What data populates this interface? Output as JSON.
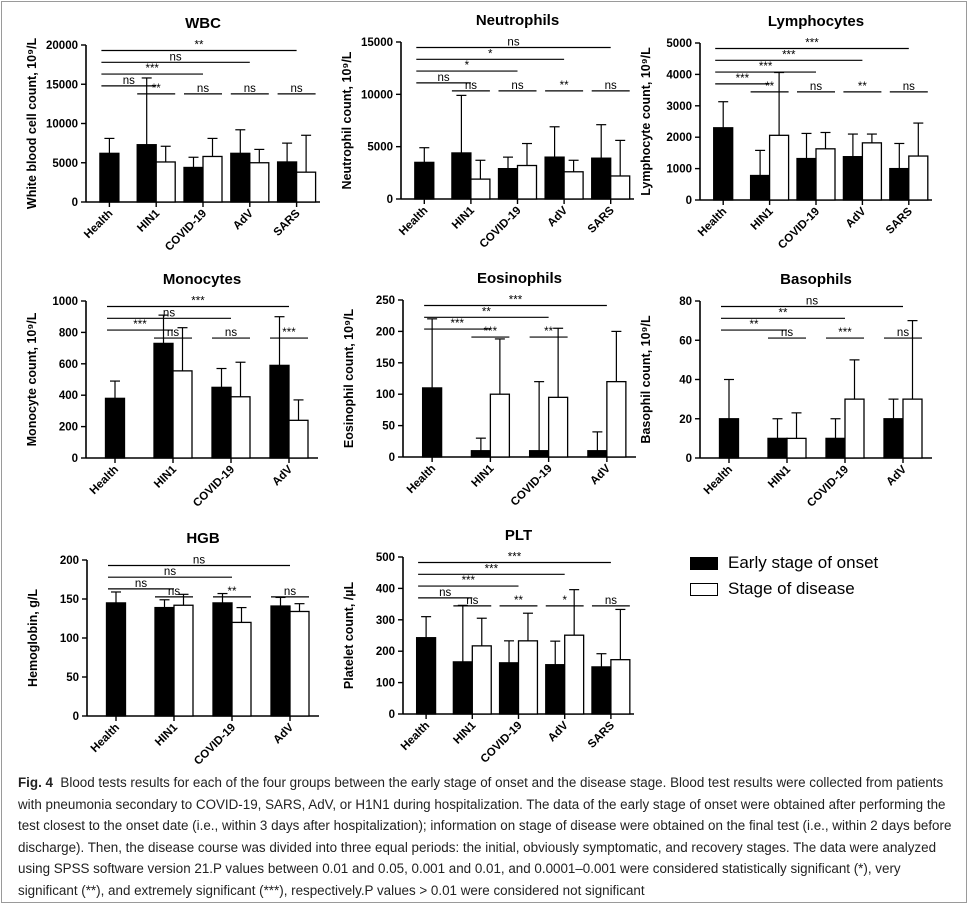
{
  "caption": {
    "label": "Fig. 4",
    "text": "Blood tests results for each of the four groups between the early stage of onset and the disease stage. Blood test results were collected from patients with pneumonia secondary to COVID-19, SARS, AdV, or H1N1 during hospitalization. The data of the early stage of onset were obtained after performing the test closest to the onset date (i.e., within 3 days after hospitalization); information on stage of disease were obtained on the final test (i.e., within 2 days before discharge). Then, the disease course was divided into three equal periods: the initial, obviously symptomatic, and recovery stages. The data were analyzed using SPSS software version 21.P values between 0.01 and 0.05, 0.001 and 0.01, and 0.0001–0.001 were considered statistically significant (*), very significant (**), and extremely significant (***), respectively.P values > 0.01 were considered not significant"
  },
  "legend": [
    {
      "label": "Early stage of onset",
      "color": "#000000"
    },
    {
      "label": "Stage of disease",
      "color": "#ffffff"
    }
  ],
  "chart_data": [
    {
      "type": "bar",
      "title": "WBC",
      "ylabel": "White blood cell count, 10⁹/L",
      "categories": [
        "Health",
        "HIN1",
        "COVID-19",
        "AdV",
        "SARS"
      ],
      "ylim": [
        0,
        20000
      ],
      "yticks": [
        0,
        5000,
        10000,
        15000,
        20000
      ],
      "series": [
        {
          "name": "Early stage of onset",
          "values": [
            6200,
            7300,
            4400,
            6200,
            5100
          ],
          "errors": [
            1900,
            8500,
            1300,
            3000,
            2400
          ]
        },
        {
          "name": "Stage of disease",
          "values": [
            null,
            5100,
            5800,
            5000,
            3800
          ],
          "errors": [
            null,
            2000,
            2300,
            1700,
            4700
          ]
        }
      ],
      "brackets": [
        {
          "from": 0,
          "to": 4,
          "label": "**"
        },
        {
          "from": 0,
          "to": 3,
          "label": "ns"
        },
        {
          "from": 0,
          "to": 2,
          "label": "***"
        },
        {
          "from": 0,
          "to": 1,
          "label": "ns"
        },
        {
          "group": 1,
          "label": "**"
        },
        {
          "group": 2,
          "label": "ns"
        },
        {
          "group": 3,
          "label": "ns"
        },
        {
          "group": 4,
          "label": "ns"
        }
      ]
    },
    {
      "type": "bar",
      "title": "Neutrophils",
      "ylabel": "Neutrophil count, 10⁹/L",
      "categories": [
        "Health",
        "HIN1",
        "COVID-19",
        "AdV",
        "SARS"
      ],
      "ylim": [
        0,
        15000
      ],
      "yticks": [
        0,
        5000,
        10000,
        15000
      ],
      "series": [
        {
          "name": "Early stage of onset",
          "values": [
            3500,
            4400,
            2900,
            4000,
            3900
          ],
          "errors": [
            1400,
            5500,
            1100,
            2900,
            3200
          ]
        },
        {
          "name": "Stage of disease",
          "values": [
            null,
            1900,
            3200,
            2600,
            2200
          ],
          "errors": [
            null,
            1800,
            2100,
            1100,
            3400
          ]
        }
      ],
      "brackets": [
        {
          "from": 0,
          "to": 4,
          "label": "ns"
        },
        {
          "from": 0,
          "to": 3,
          "label": "*"
        },
        {
          "from": 0,
          "to": 2,
          "label": "*"
        },
        {
          "from": 0,
          "to": 1,
          "label": "ns"
        },
        {
          "group": 1,
          "label": "ns"
        },
        {
          "group": 2,
          "label": "ns"
        },
        {
          "group": 3,
          "label": "**"
        },
        {
          "group": 4,
          "label": "ns"
        }
      ]
    },
    {
      "type": "bar",
      "title": "Lymphocytes",
      "ylabel": "Lymphocyte count, 10⁹/L",
      "categories": [
        "Health",
        "HIN1",
        "COVID-19",
        "AdV",
        "SARS"
      ],
      "ylim": [
        0,
        5000
      ],
      "yticks": [
        0,
        1000,
        2000,
        3000,
        4000,
        5000
      ],
      "series": [
        {
          "name": "Early stage of onset",
          "values": [
            2300,
            780,
            1320,
            1380,
            1000
          ],
          "errors": [
            830,
            800,
            800,
            720,
            800
          ]
        },
        {
          "name": "Stage of disease",
          "values": [
            null,
            2060,
            1630,
            1820,
            1400
          ],
          "errors": [
            null,
            2000,
            520,
            280,
            1050
          ]
        }
      ],
      "brackets": [
        {
          "from": 0,
          "to": 4,
          "label": "***"
        },
        {
          "from": 0,
          "to": 3,
          "label": "***"
        },
        {
          "from": 0,
          "to": 2,
          "label": "***"
        },
        {
          "from": 0,
          "to": 1,
          "label": "***"
        },
        {
          "group": 1,
          "label": "**"
        },
        {
          "group": 2,
          "label": "ns"
        },
        {
          "group": 3,
          "label": "**"
        },
        {
          "group": 4,
          "label": "ns"
        }
      ]
    },
    {
      "type": "bar",
      "title": "Monocytes",
      "ylabel": "Monocyte count, 10⁹/L",
      "categories": [
        "Health",
        "HIN1",
        "COVID-19",
        "AdV"
      ],
      "ylim": [
        0,
        1000
      ],
      "yticks": [
        0,
        200,
        400,
        600,
        800,
        1000
      ],
      "series": [
        {
          "name": "Early stage of onset",
          "values": [
            380,
            730,
            450,
            590
          ],
          "errors": [
            110,
            180,
            120,
            310
          ]
        },
        {
          "name": "Stage of disease",
          "values": [
            null,
            555,
            390,
            240
          ],
          "errors": [
            null,
            275,
            220,
            130
          ]
        }
      ],
      "brackets": [
        {
          "from": 0,
          "to": 3,
          "label": "***"
        },
        {
          "from": 0,
          "to": 2,
          "label": "ns"
        },
        {
          "from": 0,
          "to": 1,
          "label": "***"
        },
        {
          "group": 1,
          "label": "ns"
        },
        {
          "group": 2,
          "label": "ns"
        },
        {
          "group": 3,
          "label": "***"
        }
      ]
    },
    {
      "type": "bar",
      "title": "Eosinophils",
      "ylabel": "Eosinophil count, 10⁹/L",
      "categories": [
        "Health",
        "HIN1",
        "COVID-19",
        "AdV"
      ],
      "ylim": [
        0,
        250
      ],
      "yticks": [
        0,
        50,
        100,
        150,
        200,
        250
      ],
      "series": [
        {
          "name": "Early stage of onset",
          "values": [
            110,
            10,
            10,
            10
          ],
          "errors": [
            110,
            20,
            110,
            30
          ]
        },
        {
          "name": "Stage of disease",
          "values": [
            null,
            100,
            95,
            120
          ],
          "errors": [
            null,
            88,
            110,
            80
          ]
        }
      ],
      "brackets": [
        {
          "from": 0,
          "to": 3,
          "label": "***"
        },
        {
          "from": 0,
          "to": 2,
          "label": "**"
        },
        {
          "from": 0,
          "to": 1,
          "label": "***"
        },
        {
          "group": 1,
          "label": "***"
        },
        {
          "group": 2,
          "label": "**"
        }
      ]
    },
    {
      "type": "bar",
      "title": "Basophils",
      "ylabel": "Basophil count, 10⁹/L",
      "categories": [
        "Health",
        "HIN1",
        "COVID-19",
        "AdV"
      ],
      "ylim": [
        0,
        80
      ],
      "yticks": [
        0,
        20,
        40,
        60,
        80
      ],
      "series": [
        {
          "name": "Early stage of onset",
          "values": [
            20,
            10,
            10,
            20
          ],
          "errors": [
            20,
            10,
            10,
            10
          ]
        },
        {
          "name": "Stage of disease",
          "values": [
            null,
            10,
            30,
            30
          ],
          "errors": [
            null,
            13,
            20,
            40
          ]
        }
      ],
      "brackets": [
        {
          "from": 0,
          "to": 3,
          "label": "ns"
        },
        {
          "from": 0,
          "to": 2,
          "label": "**"
        },
        {
          "from": 0,
          "to": 1,
          "label": "**"
        },
        {
          "group": 1,
          "label": "ns"
        },
        {
          "group": 2,
          "label": "***"
        },
        {
          "group": 3,
          "label": "ns"
        }
      ]
    },
    {
      "type": "bar",
      "title": "HGB",
      "ylabel": "Hemoglobin, g/L",
      "categories": [
        "Health",
        "HIN1",
        "COVID-19",
        "AdV"
      ],
      "ylim": [
        0,
        200
      ],
      "yticks": [
        0,
        50,
        100,
        150,
        200
      ],
      "series": [
        {
          "name": "Early stage of onset",
          "values": [
            145,
            139,
            145,
            141
          ],
          "errors": [
            14,
            10,
            12,
            11
          ]
        },
        {
          "name": "Stage of disease",
          "values": [
            null,
            142,
            120,
            134
          ],
          "errors": [
            null,
            14,
            19,
            10
          ]
        }
      ],
      "brackets": [
        {
          "from": 0,
          "to": 3,
          "label": "ns"
        },
        {
          "from": 0,
          "to": 2,
          "label": "ns"
        },
        {
          "from": 0,
          "to": 1,
          "label": "ns"
        },
        {
          "group": 1,
          "label": "ns"
        },
        {
          "group": 2,
          "label": "**"
        },
        {
          "group": 3,
          "label": "ns"
        }
      ]
    },
    {
      "type": "bar",
      "title": "PLT",
      "ylabel": "Platelet count, /µL",
      "categories": [
        "Health",
        "HIN1",
        "COVID-19",
        "AdV",
        "SARS"
      ],
      "ylim": [
        0,
        500
      ],
      "yticks": [
        0,
        100,
        200,
        300,
        400,
        500
      ],
      "series": [
        {
          "name": "Early stage of onset",
          "values": [
            243,
            166,
            163,
            157,
            150
          ],
          "errors": [
            67,
            180,
            70,
            75,
            42
          ]
        },
        {
          "name": "Stage of disease",
          "values": [
            null,
            217,
            233,
            251,
            173
          ],
          "errors": [
            null,
            88,
            88,
            145,
            160
          ]
        }
      ],
      "brackets": [
        {
          "from": 0,
          "to": 4,
          "label": "***"
        },
        {
          "from": 0,
          "to": 3,
          "label": "***"
        },
        {
          "from": 0,
          "to": 2,
          "label": "***"
        },
        {
          "from": 0,
          "to": 1,
          "label": "ns"
        },
        {
          "group": 1,
          "label": "ns"
        },
        {
          "group": 2,
          "label": "**"
        },
        {
          "group": 3,
          "label": "*"
        },
        {
          "group": 4,
          "label": "ns"
        }
      ]
    }
  ]
}
